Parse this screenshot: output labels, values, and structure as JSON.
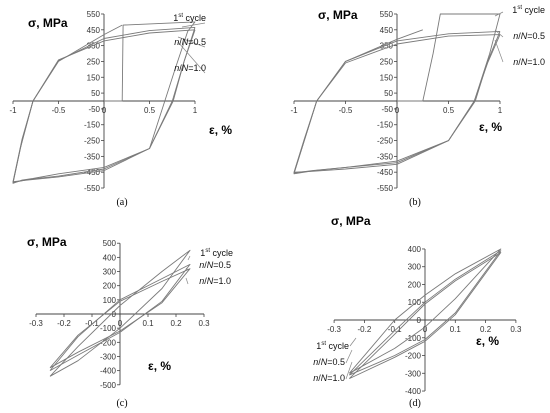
{
  "chart_data": [
    {
      "panel": "a",
      "type": "line",
      "caption": "(a)",
      "ylabel": "σ, MPa",
      "xlabel": "ε, %",
      "xlim": [
        -1,
        1
      ],
      "ylim": [
        -550,
        550
      ],
      "x_ticks": [
        "-1",
        "-0.5",
        "0",
        "0.5",
        "1"
      ],
      "y_ticks": [
        "550",
        "450",
        "350",
        "250",
        "150",
        "50",
        "-50",
        "-150",
        "-250",
        "-350",
        "-450",
        "-550"
      ],
      "annotations": [
        {
          "text": "1",
          "sup": "st",
          "rest": " cycle"
        },
        {
          "text": "n/N=0.5"
        },
        {
          "text": "n/N=1.0"
        }
      ],
      "series": [
        {
          "name": "1st cycle",
          "x": [
            0,
            0.2,
            0.21,
            1.0,
            0.92,
            0.78,
            0.5,
            0,
            -0.5,
            -0.78,
            -0.9,
            -1.0,
            -0.92,
            -0.78,
            -0.5,
            0,
            0.2
          ],
          "y": [
            0,
            0,
            480,
            500,
            440,
            200,
            -300,
            -420,
            -460,
            -490,
            -500,
            -520,
            -300,
            0,
            250,
            420,
            480
          ]
        },
        {
          "name": "n/N=0.5",
          "x": [
            1.0,
            0.88,
            0.76,
            0.5,
            0,
            -0.5,
            -0.82,
            -1.0,
            -0.9,
            -0.78,
            -0.5,
            0,
            0.5,
            1.0
          ],
          "y": [
            465,
            250,
            0,
            -300,
            -430,
            -475,
            -495,
            -515,
            -250,
            0,
            255,
            395,
            445,
            465
          ]
        },
        {
          "name": "n/N=1.0",
          "x": [
            1.0,
            0.88,
            0.75,
            0.5,
            0,
            -0.5,
            -0.84,
            -1.0,
            -0.9,
            -0.78,
            -0.5,
            0,
            0.5,
            1.0
          ],
          "y": [
            450,
            250,
            0,
            -300,
            -440,
            -480,
            -500,
            -510,
            -240,
            0,
            260,
            380,
            430,
            450
          ]
        }
      ]
    },
    {
      "panel": "b",
      "type": "line",
      "caption": "(b)",
      "ylabel": "σ, MPa",
      "xlabel": "ε, %",
      "xlim": [
        -1,
        1
      ],
      "ylim": [
        -550,
        550
      ],
      "x_ticks": [
        "-1",
        "-0.5",
        "0",
        "0.5",
        "1"
      ],
      "y_ticks": [
        "550",
        "450",
        "350",
        "250",
        "150",
        "50",
        "-50",
        "-150",
        "-250",
        "-350",
        "-450",
        "-550"
      ],
      "annotations": [
        {
          "text": "1",
          "sup": "st",
          "rest": " cycle"
        },
        {
          "text": "n/N=0.5"
        },
        {
          "text": "n/N=1.0"
        }
      ],
      "series": [
        {
          "name": "1st cycle",
          "x": [
            0,
            0.25,
            0.35,
            0.42,
            1.0,
            0.9,
            0.75,
            0.5,
            0,
            -0.5,
            -0.8,
            -1.0,
            -0.9,
            -0.78,
            -0.5,
            0,
            0.25
          ],
          "y": [
            0,
            0,
            300,
            550,
            550,
            300,
            0,
            -250,
            -380,
            -420,
            -440,
            -460,
            -250,
            0,
            250,
            390,
            450
          ]
        },
        {
          "name": "n/N=0.5",
          "x": [
            1.0,
            0.88,
            0.76,
            0.5,
            0,
            -0.5,
            -0.82,
            -1.0,
            -0.9,
            -0.78,
            -0.5,
            0,
            0.5,
            1.0
          ],
          "y": [
            440,
            250,
            0,
            -250,
            -390,
            -420,
            -440,
            -455,
            -250,
            0,
            250,
            380,
            425,
            440
          ]
        },
        {
          "name": "n/N=1.0",
          "x": [
            1.0,
            0.88,
            0.75,
            0.5,
            0,
            -0.5,
            -0.84,
            -1.0,
            -0.9,
            -0.78,
            -0.5,
            0,
            0.5,
            1.0
          ],
          "y": [
            420,
            240,
            0,
            -250,
            -400,
            -430,
            -445,
            -450,
            -240,
            0,
            240,
            360,
            410,
            420
          ]
        }
      ]
    },
    {
      "panel": "c",
      "type": "line",
      "caption": "(c)",
      "ylabel": "σ, MPa",
      "xlabel": "ε, %",
      "xlim": [
        -0.3,
        0.3
      ],
      "ylim": [
        -500,
        500
      ],
      "x_ticks": [
        "-0.3",
        "-0.2",
        "-0.1",
        "0",
        "0.1",
        "0.2",
        "0.3"
      ],
      "y_ticks": [
        "500",
        "400",
        "300",
        "200",
        "100",
        "0",
        "-100",
        "-200",
        "-300",
        "-400",
        "-500"
      ],
      "annotations": [
        {
          "text": "1",
          "sup": "st",
          "rest": " cycle"
        },
        {
          "text": "n/N=0.5"
        },
        {
          "text": "n/N=1.0"
        }
      ],
      "series": [
        {
          "name": "1st cycle",
          "x": [
            -0.25,
            -0.15,
            0,
            0.15,
            0.25,
            0.15,
            0,
            -0.15,
            -0.25
          ],
          "y": [
            -440,
            -330,
            -100,
            180,
            450,
            300,
            60,
            -230,
            -440
          ]
        },
        {
          "name": "n/N=0.5",
          "x": [
            -0.25,
            -0.15,
            0,
            0.15,
            0.25,
            0.15,
            0,
            -0.15,
            -0.25
          ],
          "y": [
            -400,
            -290,
            -130,
            90,
            350,
            250,
            100,
            -160,
            -400
          ]
        },
        {
          "name": "n/N=1.0",
          "x": [
            -0.25,
            -0.15,
            0,
            0.15,
            0.25,
            0.15,
            0,
            -0.15,
            -0.25
          ],
          "y": [
            -380,
            -270,
            -120,
            80,
            320,
            230,
            90,
            -150,
            -380
          ]
        }
      ]
    },
    {
      "panel": "d",
      "type": "line",
      "caption": "(d)",
      "ylabel": "σ, MPa",
      "xlabel": "ε, %",
      "xlim": [
        -0.3,
        0.3
      ],
      "ylim": [
        -400,
        400
      ],
      "x_ticks": [
        "-0.3",
        "-0.2",
        "-0.1",
        "0",
        "0.1",
        "0.2",
        "0.3"
      ],
      "y_ticks": [
        "400",
        "300",
        "200",
        "100",
        "0",
        "-100",
        "-200",
        "-300",
        "-400"
      ],
      "annotations": [
        {
          "text": "1",
          "sup": "st",
          "rest": " cycle"
        },
        {
          "text": "n/N=0.5"
        },
        {
          "text": "n/N=1.0"
        }
      ],
      "series": [
        {
          "name": "1st cycle",
          "x": [
            -0.25,
            -0.1,
            0,
            0.1,
            0.25,
            0.1,
            0,
            -0.1,
            -0.25
          ],
          "y": [
            -300,
            -160,
            -40,
            120,
            400,
            260,
            140,
            0,
            -300
          ]
        },
        {
          "name": "n/N=0.5",
          "x": [
            -0.25,
            -0.1,
            0,
            0.1,
            0.25,
            0.1,
            0,
            -0.1,
            -0.25
          ],
          "y": [
            -310,
            -200,
            -110,
            40,
            390,
            230,
            100,
            -60,
            -310
          ]
        },
        {
          "name": "n/N=1.0",
          "x": [
            -0.25,
            -0.1,
            0,
            0.1,
            0.25,
            0.1,
            0,
            -0.1,
            -0.25
          ],
          "y": [
            -330,
            -210,
            -120,
            30,
            380,
            220,
            90,
            -80,
            -330
          ]
        }
      ]
    }
  ]
}
